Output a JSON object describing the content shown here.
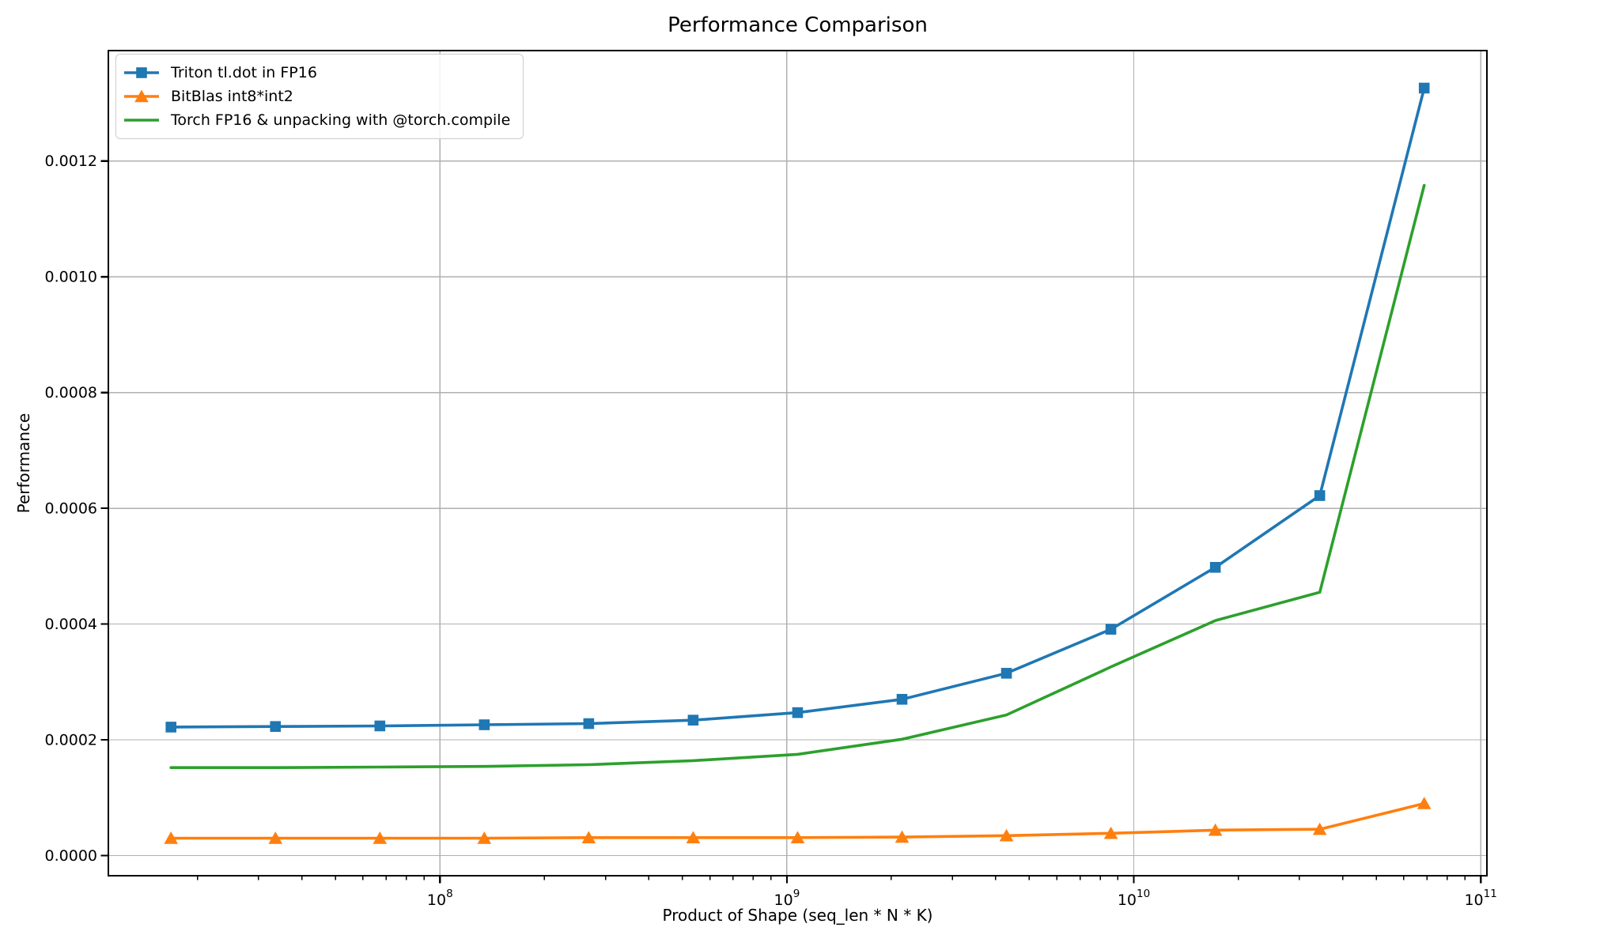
{
  "chart_data": {
    "type": "line",
    "title": "Performance Comparison",
    "xlabel": "Product of Shape (seq_len * N * K)",
    "ylabel": "Performance",
    "x_scale": "log",
    "grid": true,
    "legend_position": "upper left",
    "x": [
      16777216,
      33554432,
      67108864,
      134217728,
      268435456,
      536870912,
      1073741824,
      2147483648,
      4294967296,
      8589934592,
      17179869184,
      34359738368,
      68719476736
    ],
    "series": [
      {
        "name": "Triton tl.dot in FP16",
        "color": "#1f77b4",
        "marker": "square",
        "values": [
          0.000222,
          0.000223,
          0.000224,
          0.000226,
          0.000228,
          0.000234,
          0.000247,
          0.00027,
          0.000315,
          0.000391,
          0.000498,
          0.000622,
          0.001326
        ]
      },
      {
        "name": "BitBlas int8*int2",
        "color": "#ff7f0e",
        "marker": "triangle-up",
        "values": [
          3e-05,
          3e-05,
          3e-05,
          3e-05,
          3.1e-05,
          3.1e-05,
          3.1e-05,
          3.2e-05,
          3.45e-05,
          3.85e-05,
          4.4e-05,
          4.55e-05,
          9e-05
        ]
      },
      {
        "name": "Torch FP16 & unpacking with @torch.compile",
        "color": "#2ca02c",
        "marker": "none",
        "values": [
          0.000152,
          0.000152,
          0.000153,
          0.000154,
          0.000157,
          0.000164,
          0.000175,
          0.000201,
          0.000243,
          0.000326,
          0.000406,
          0.000455,
          0.001158
        ]
      }
    ],
    "x_ticks": [
      {
        "value": 100000000,
        "base": "10",
        "exp": "8"
      },
      {
        "value": 1000000000,
        "base": "10",
        "exp": "9"
      },
      {
        "value": 10000000000,
        "base": "10",
        "exp": "10"
      },
      {
        "value": 100000000000,
        "base": "10",
        "exp": "11"
      }
    ],
    "y_ticks": [
      {
        "value": 0.0,
        "label": "0.0000"
      },
      {
        "value": 0.0002,
        "label": "0.0002"
      },
      {
        "value": 0.0004,
        "label": "0.0004"
      },
      {
        "value": 0.0006,
        "label": "0.0006"
      },
      {
        "value": 0.0008,
        "label": "0.0008"
      },
      {
        "value": 0.001,
        "label": "0.0010"
      },
      {
        "value": 0.0012,
        "label": "0.0012"
      }
    ],
    "xlim": [
      11070000,
      104200000000
    ],
    "ylim": [
      -3.48e-05,
      0.0013908
    ],
    "colors": {
      "grid": "#b0b0b0",
      "spine": "#000000",
      "tick_label": "#000000",
      "background": "#ffffff",
      "legend_border": "#cccccc"
    }
  }
}
